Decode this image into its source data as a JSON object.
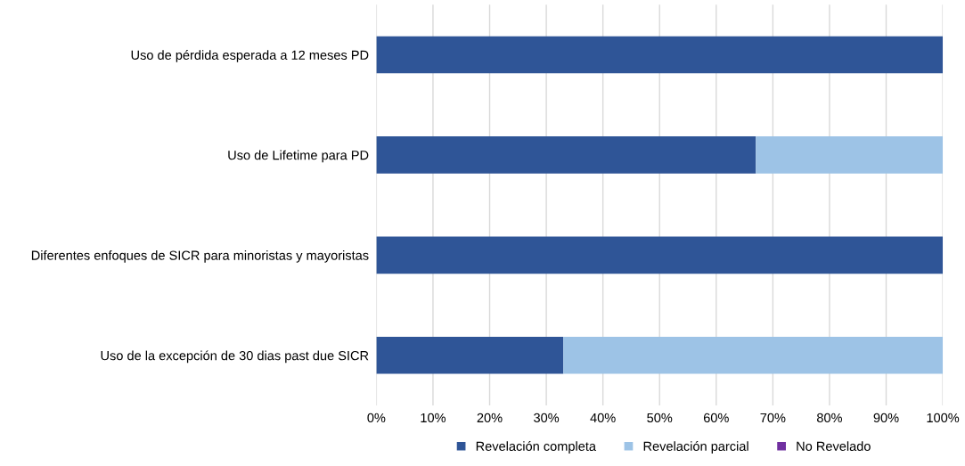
{
  "chart_data": {
    "type": "bar",
    "orientation": "horizontal",
    "stacked": true,
    "categories": [
      "Uso de pérdida esperada a 12 meses PD",
      "Uso de Lifetime para PD",
      "Diferentes enfoques de SICR para minoristas y mayoristas",
      "Uso de la excepción de 30 dias past due SICR"
    ],
    "series": [
      {
        "name": "Revelación completa",
        "color": "#2f5597",
        "values": [
          100,
          67,
          100,
          33
        ]
      },
      {
        "name": "Revelación parcial",
        "color": "#9dc3e6",
        "values": [
          0,
          33,
          0,
          67
        ]
      },
      {
        "name": "No Revelado",
        "color": "#7030a0",
        "values": [
          0,
          0,
          0,
          0
        ]
      }
    ],
    "xlim": [
      0,
      100
    ],
    "xticks": [
      {
        "value": 0,
        "label": "0%"
      },
      {
        "value": 10,
        "label": "10%"
      },
      {
        "value": 20,
        "label": "20%"
      },
      {
        "value": 30,
        "label": "30%"
      },
      {
        "value": 40,
        "label": "40%"
      },
      {
        "value": 50,
        "label": "50%"
      },
      {
        "value": 60,
        "label": "60%"
      },
      {
        "value": 70,
        "label": "70%"
      },
      {
        "value": 80,
        "label": "80%"
      },
      {
        "value": 90,
        "label": "90%"
      },
      {
        "value": 100,
        "label": "100%"
      }
    ],
    "grid": "x",
    "legend": "bottom"
  }
}
